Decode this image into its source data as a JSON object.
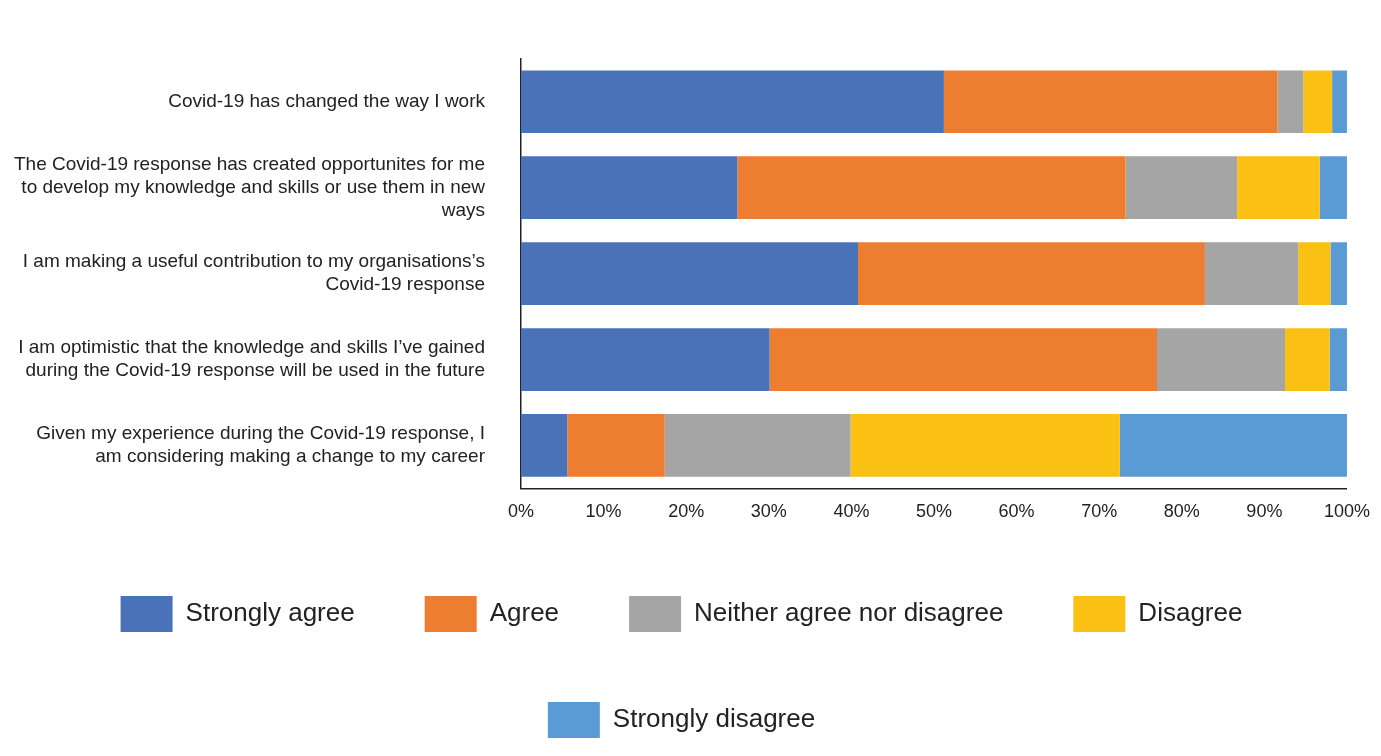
{
  "chart_data": {
    "type": "bar",
    "orientation": "horizontal",
    "stacked": true,
    "categories": [
      "Covid-19 has changed the way I work",
      "The Covid-19 response has created opportunites for me to develop my knowledge and skills or use them in new ways",
      "I am making a useful contribution to my organisations’s Covid-19 response",
      "I am optimistic that the knowledge and skills I’ve gained during the Covid-19 response will be used in the future",
      "Given my experience during the Covid-19 response, I am considering making a change to my career"
    ],
    "series": [
      {
        "name": "Strongly agree",
        "color": "#4a72b8",
        "values": [
          51.2,
          26.2,
          40.8,
          30.1,
          5.6
        ]
      },
      {
        "name": "Agree",
        "color": "#ed7d31",
        "values": [
          40.4,
          47.0,
          42.0,
          46.9,
          11.8
        ]
      },
      {
        "name": "Neither agree nor disagree",
        "color": "#a5a5a5",
        "values": [
          3.1,
          13.5,
          11.3,
          15.5,
          22.5
        ]
      },
      {
        "name": "Disagree",
        "color": "#fbc014",
        "values": [
          3.5,
          10.0,
          3.9,
          5.4,
          32.6
        ]
      },
      {
        "name": "Strongly disagree",
        "color": "#5b9bd5",
        "values": [
          1.8,
          3.3,
          2.0,
          2.1,
          27.5
        ]
      }
    ],
    "xlim": [
      0,
      100
    ],
    "xticks": [
      {
        "value": 0,
        "label": "0%"
      },
      {
        "value": 10,
        "label": "10%"
      },
      {
        "value": 20,
        "label": "20%"
      },
      {
        "value": 30,
        "label": "30%"
      },
      {
        "value": 40,
        "label": "40%"
      },
      {
        "value": 50,
        "label": "50%"
      },
      {
        "value": 60,
        "label": "60%"
      },
      {
        "value": 70,
        "label": "70%"
      },
      {
        "value": 80,
        "label": "80%"
      },
      {
        "value": 90,
        "label": "90%"
      },
      {
        "value": 100,
        "label": "100%"
      }
    ],
    "grid": false,
    "legend": "bottom"
  }
}
